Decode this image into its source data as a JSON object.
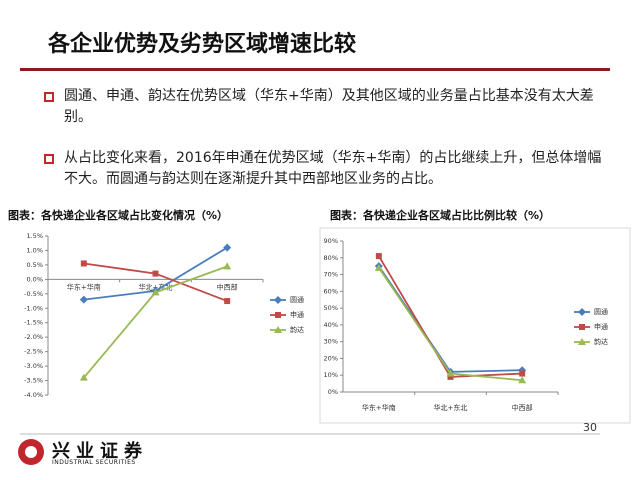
{
  "header": {
    "title": "各企业优势及劣势区域增速比较"
  },
  "bullets": [
    "圆通、申通、韵达在优势区域（华东+华南）及其他区域的业务量占比基本没有太大差别。",
    "从占比变化来看，2016年申通在优势区域（华东+华南）的占比继续上升，但总体增幅不大。而圆通与韵达则在逐渐提升其中西部地区业务的占比。"
  ],
  "chart_data": [
    {
      "type": "line",
      "title": "图表：各快递企业各区域占比变化情况（%）",
      "categories": [
        "华东+华南",
        "华北+东北",
        "中西部"
      ],
      "series": [
        {
          "name": "圆通",
          "color": "#4a7ebb",
          "marker": "diamond",
          "values": [
            -0.7,
            -0.4,
            1.1
          ]
        },
        {
          "name": "申通",
          "color": "#be4b48",
          "marker": "square",
          "values": [
            0.55,
            0.2,
            -0.75
          ]
        },
        {
          "name": "韵达",
          "color": "#98b954",
          "marker": "triangle",
          "values": [
            -3.4,
            -0.45,
            0.45
          ]
        }
      ],
      "ylim": [
        -4.0,
        1.5
      ],
      "yticks": [
        {
          "value": 1.5,
          "label": "1.5%"
        },
        {
          "value": 1.0,
          "label": "1.0%"
        },
        {
          "value": 0.5,
          "label": "0.5%"
        },
        {
          "value": 0,
          "label": "0.0%"
        },
        {
          "value": -0.5,
          "label": "-0.5%"
        },
        {
          "value": -1.0,
          "label": "-1.0%"
        },
        {
          "value": -1.5,
          "label": "-1.5%"
        },
        {
          "value": -2.0,
          "label": "-2.0%"
        },
        {
          "value": -2.5,
          "label": "-2.5%"
        },
        {
          "value": -3.0,
          "label": "-3.0%"
        },
        {
          "value": -3.5,
          "label": "-3.5%"
        },
        {
          "value": -4.0,
          "label": "-4.0%"
        }
      ],
      "legend": "right"
    },
    {
      "type": "line",
      "title": "图表：各快递企业各区域占比比例比较（%）",
      "categories": [
        "华东+华南",
        "华北+东北",
        "中西部"
      ],
      "series": [
        {
          "name": "圆通",
          "color": "#4a7ebb",
          "marker": "diamond",
          "values": [
            75,
            12,
            13
          ]
        },
        {
          "name": "申通",
          "color": "#be4b48",
          "marker": "square",
          "values": [
            81,
            9,
            11
          ]
        },
        {
          "name": "韵达",
          "color": "#98b954",
          "marker": "triangle",
          "values": [
            74,
            11,
            7
          ]
        }
      ],
      "ylim": [
        0,
        90
      ],
      "yticks": [
        {
          "value": 90,
          "label": "90%"
        },
        {
          "value": 80,
          "label": "80%"
        },
        {
          "value": 70,
          "label": "70%"
        },
        {
          "value": 60,
          "label": "60%"
        },
        {
          "value": 50,
          "label": "50%"
        },
        {
          "value": 40,
          "label": "40%"
        },
        {
          "value": 30,
          "label": "30%"
        },
        {
          "value": 20,
          "label": "20%"
        },
        {
          "value": 10,
          "label": "10%"
        },
        {
          "value": 0,
          "label": "0%"
        }
      ],
      "legend": "right"
    }
  ],
  "footer": {
    "logo": "兴业证券",
    "logo_en": "INDUSTRIAL SECURITIES",
    "page": "30"
  }
}
